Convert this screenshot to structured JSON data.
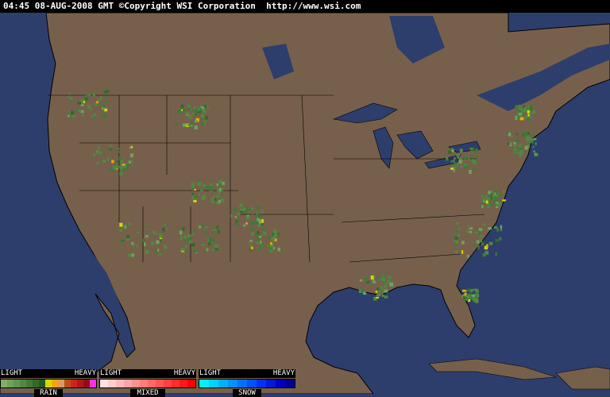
{
  "header": {
    "timestamp": "04:45 08-AUG-2008 GMT",
    "copyright": "©Copyright WSI Corporation",
    "url": "http://www.wsi.com"
  },
  "colors": {
    "ocean": "#2d3e6c",
    "land": "#76604c",
    "borders": "#000000"
  },
  "legend": [
    {
      "name": "RAIN",
      "light": "LIGHT",
      "heavy": "HEAVY",
      "colors": [
        "#7fb06a",
        "#6ea35c",
        "#5e964e",
        "#4f8842",
        "#3f7a36",
        "#2f6b2b",
        "#205c20",
        "#d8d800",
        "#f0a800",
        "#e09a60",
        "#b85010",
        "#d02020",
        "#b01818",
        "#901010",
        "#ff30e0"
      ]
    },
    {
      "name": "MIXED",
      "light": "LIGHT",
      "heavy": "HEAVY",
      "colors": [
        "#ffe0e0",
        "#ffcccc",
        "#ffb8b8",
        "#ffa4a4",
        "#ff9090",
        "#ff7c7c",
        "#ff6868",
        "#ff5454",
        "#ff4040",
        "#ff2c2c",
        "#ff1818",
        "#ff0000"
      ]
    },
    {
      "name": "SNOW",
      "light": "LIGHT",
      "heavy": "HEAVY",
      "colors": [
        "#00f0ff",
        "#00d0ff",
        "#00b0ff",
        "#0090ff",
        "#0070ff",
        "#0050ff",
        "#0030f0",
        "#0018d8",
        "#0000c0",
        "#000090"
      ]
    }
  ]
}
